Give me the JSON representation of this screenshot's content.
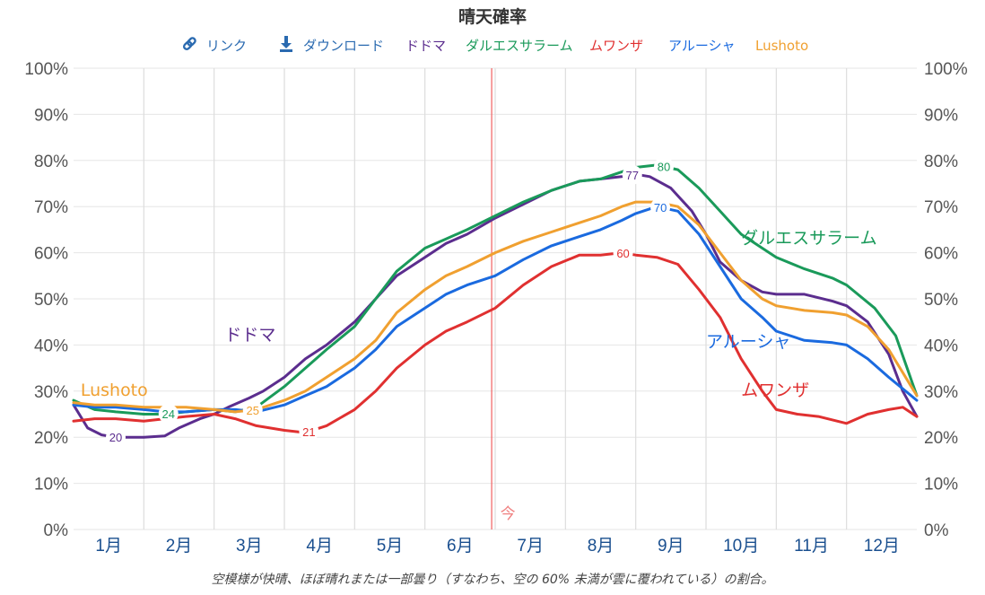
{
  "chart_data": {
    "type": "line",
    "title": "晴天確率",
    "caption": "空模様が快晴、ほぼ晴れまたは一部曇り（すなわち、空の 60% 未満が雲に覆われている）の割合。",
    "now_label": "今",
    "now_position": 5.95,
    "ylim": [
      0,
      100
    ],
    "y_ticks": [
      "0%",
      "10%",
      "20%",
      "30%",
      "40%",
      "50%",
      "60%",
      "70%",
      "80%",
      "90%",
      "100%"
    ],
    "months": [
      "1月",
      "2月",
      "3月",
      "4月",
      "5月",
      "6月",
      "7月",
      "8月",
      "9月",
      "10月",
      "11月",
      "12月"
    ],
    "grid": true,
    "legend_placement": "top",
    "legend": {
      "link_label": "リンク",
      "link_icon": "link-icon",
      "download_label": "ダウンロード",
      "download_icon": "download-icon"
    },
    "series": [
      {
        "name": "ドドマ",
        "color": "#5b2d8e",
        "label_text": "ドドマ",
        "label_at": [
          2.15,
          41
        ],
        "points": [
          [
            0,
            27
          ],
          [
            0.2,
            22
          ],
          [
            0.4,
            20.5
          ],
          [
            0.6,
            20
          ],
          [
            1,
            20
          ],
          [
            1.3,
            20.3
          ],
          [
            1.5,
            22
          ],
          [
            1.8,
            24
          ],
          [
            2,
            25
          ],
          [
            2.2,
            26.5
          ],
          [
            2.5,
            28.5
          ],
          [
            2.7,
            30
          ],
          [
            3,
            33
          ],
          [
            3.3,
            37
          ],
          [
            3.6,
            40
          ],
          [
            4,
            45
          ],
          [
            4.3,
            50
          ],
          [
            4.6,
            55
          ],
          [
            5,
            59
          ],
          [
            5.3,
            62
          ],
          [
            5.6,
            64
          ],
          [
            6,
            67.5
          ],
          [
            6.4,
            70.5
          ],
          [
            6.8,
            73.5
          ],
          [
            7.2,
            75.5
          ],
          [
            7.5,
            76
          ],
          [
            7.8,
            76.5
          ],
          [
            8,
            77
          ],
          [
            8.2,
            76.5
          ],
          [
            8.5,
            74
          ],
          [
            8.8,
            69
          ],
          [
            9,
            64
          ],
          [
            9.2,
            58
          ],
          [
            9.5,
            54
          ],
          [
            9.8,
            51.5
          ],
          [
            10,
            51
          ],
          [
            10.4,
            51
          ],
          [
            10.8,
            49.5
          ],
          [
            11,
            48.5
          ],
          [
            11.3,
            45
          ],
          [
            11.6,
            38
          ],
          [
            11.8,
            30
          ],
          [
            12,
            24.5
          ]
        ],
        "data_labels": [
          {
            "x": 0.6,
            "value": 20
          },
          {
            "x": 7.95,
            "value": 77
          }
        ]
      },
      {
        "name": "ダルエスサラーム",
        "color": "#1a9a5a",
        "label_text": "ダルエスサラーム",
        "label_at": [
          9.5,
          62
        ],
        "points": [
          [
            0,
            28
          ],
          [
            0.3,
            26
          ],
          [
            0.6,
            25.5
          ],
          [
            1,
            25
          ],
          [
            1.3,
            25
          ],
          [
            1.6,
            25.5
          ],
          [
            2,
            26
          ],
          [
            2.3,
            25.5
          ],
          [
            2.6,
            26.5
          ],
          [
            3,
            31
          ],
          [
            3.3,
            35
          ],
          [
            3.6,
            39
          ],
          [
            4,
            44
          ],
          [
            4.3,
            50
          ],
          [
            4.6,
            56
          ],
          [
            5,
            61
          ],
          [
            5.3,
            63
          ],
          [
            5.6,
            65
          ],
          [
            6,
            68
          ],
          [
            6.4,
            71
          ],
          [
            6.8,
            73.5
          ],
          [
            7.2,
            75.5
          ],
          [
            7.5,
            76
          ],
          [
            7.8,
            77.5
          ],
          [
            8,
            78.5
          ],
          [
            8.3,
            79
          ],
          [
            8.6,
            78
          ],
          [
            8.9,
            74
          ],
          [
            9.2,
            69
          ],
          [
            9.5,
            64
          ],
          [
            9.8,
            61
          ],
          [
            10,
            59
          ],
          [
            10.4,
            56.5
          ],
          [
            10.8,
            54.5
          ],
          [
            11,
            53
          ],
          [
            11.4,
            48
          ],
          [
            11.7,
            42
          ],
          [
            12,
            29
          ]
        ],
        "data_labels": [
          {
            "x": 1.35,
            "value": 24
          },
          {
            "x": 8.4,
            "value": 80
          }
        ]
      },
      {
        "name": "ムワンザ",
        "color": "#e03030",
        "label_text": "ムワンザ",
        "label_at": [
          9.5,
          29
        ],
        "points": [
          [
            0,
            23.5
          ],
          [
            0.3,
            24
          ],
          [
            0.6,
            24
          ],
          [
            1,
            23.5
          ],
          [
            1.3,
            24
          ],
          [
            1.6,
            24.5
          ],
          [
            2,
            25
          ],
          [
            2.3,
            24
          ],
          [
            2.6,
            22.5
          ],
          [
            3,
            21.5
          ],
          [
            3.3,
            21
          ],
          [
            3.6,
            22.5
          ],
          [
            4,
            26
          ],
          [
            4.3,
            30
          ],
          [
            4.6,
            35
          ],
          [
            5,
            40
          ],
          [
            5.3,
            43
          ],
          [
            5.6,
            45
          ],
          [
            6,
            48
          ],
          [
            6.4,
            53
          ],
          [
            6.8,
            57
          ],
          [
            7.2,
            59.5
          ],
          [
            7.5,
            59.5
          ],
          [
            7.8,
            60
          ],
          [
            8,
            59.5
          ],
          [
            8.3,
            59
          ],
          [
            8.6,
            57.5
          ],
          [
            8.9,
            52
          ],
          [
            9.2,
            46
          ],
          [
            9.5,
            37
          ],
          [
            9.8,
            30
          ],
          [
            10,
            26
          ],
          [
            10.3,
            25
          ],
          [
            10.6,
            24.5
          ],
          [
            11,
            23
          ],
          [
            11.3,
            25
          ],
          [
            11.6,
            26
          ],
          [
            11.8,
            26.5
          ],
          [
            12,
            24.5
          ]
        ],
        "data_labels": [
          {
            "x": 3.35,
            "value": 21
          },
          {
            "x": 7.82,
            "value": 60
          }
        ]
      },
      {
        "name": "アルーシャ",
        "color": "#1a6adf",
        "label_text": "アルーシャ",
        "label_at": [
          9.0,
          39.5
        ],
        "points": [
          [
            0,
            27
          ],
          [
            0.3,
            26.5
          ],
          [
            0.6,
            26.5
          ],
          [
            1,
            26
          ],
          [
            1.3,
            25.5
          ],
          [
            1.6,
            25.5
          ],
          [
            2,
            26
          ],
          [
            2.3,
            26
          ],
          [
            2.6,
            25.5
          ],
          [
            3,
            27
          ],
          [
            3.3,
            29
          ],
          [
            3.6,
            31
          ],
          [
            4,
            35
          ],
          [
            4.3,
            39
          ],
          [
            4.6,
            44
          ],
          [
            5,
            48
          ],
          [
            5.3,
            51
          ],
          [
            5.6,
            53
          ],
          [
            6,
            55
          ],
          [
            6.4,
            58.5
          ],
          [
            6.8,
            61.5
          ],
          [
            7.2,
            63.5
          ],
          [
            7.5,
            65
          ],
          [
            7.8,
            67
          ],
          [
            8,
            68.5
          ],
          [
            8.3,
            70
          ],
          [
            8.6,
            69
          ],
          [
            8.9,
            64
          ],
          [
            9.2,
            57
          ],
          [
            9.5,
            50
          ],
          [
            9.8,
            46
          ],
          [
            10,
            43
          ],
          [
            10.4,
            41
          ],
          [
            10.8,
            40.5
          ],
          [
            11,
            40
          ],
          [
            11.3,
            37
          ],
          [
            11.6,
            33
          ],
          [
            12,
            28
          ]
        ],
        "data_labels": [
          {
            "x": 8.35,
            "value": 70
          }
        ]
      },
      {
        "name": "Lushoto",
        "color": "#f0a030",
        "label_text": "Lushoto",
        "label_at": [
          0.1,
          29
        ],
        "points": [
          [
            0,
            27.5
          ],
          [
            0.3,
            27
          ],
          [
            0.6,
            27
          ],
          [
            1,
            26.5
          ],
          [
            1.3,
            26.5
          ],
          [
            1.6,
            26.5
          ],
          [
            2,
            26
          ],
          [
            2.3,
            25.5
          ],
          [
            2.6,
            26
          ],
          [
            3,
            28
          ],
          [
            3.3,
            30
          ],
          [
            3.6,
            33
          ],
          [
            4,
            37
          ],
          [
            4.3,
            41
          ],
          [
            4.6,
            47
          ],
          [
            5,
            52
          ],
          [
            5.3,
            55
          ],
          [
            5.6,
            57
          ],
          [
            6,
            60
          ],
          [
            6.4,
            62.5
          ],
          [
            6.8,
            64.5
          ],
          [
            7.2,
            66.5
          ],
          [
            7.5,
            68
          ],
          [
            7.8,
            70
          ],
          [
            8,
            71
          ],
          [
            8.3,
            71
          ],
          [
            8.6,
            70
          ],
          [
            8.9,
            66
          ],
          [
            9.2,
            60
          ],
          [
            9.5,
            54
          ],
          [
            9.8,
            50
          ],
          [
            10,
            48.5
          ],
          [
            10.4,
            47.5
          ],
          [
            10.8,
            47
          ],
          [
            11,
            46.5
          ],
          [
            11.3,
            44
          ],
          [
            11.6,
            39
          ],
          [
            12,
            29
          ]
        ],
        "data_labels": [
          {
            "x": 2.55,
            "value": 25
          }
        ]
      }
    ]
  }
}
